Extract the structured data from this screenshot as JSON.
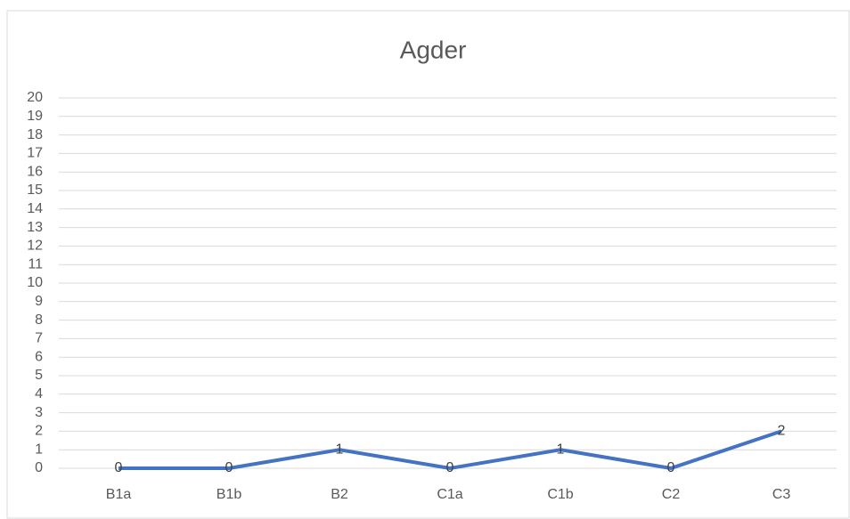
{
  "chart_data": {
    "type": "line",
    "title": "Agder",
    "categories": [
      "B1a",
      "B1b",
      "B2",
      "C1a",
      "C1b",
      "C2",
      "C3"
    ],
    "series": [
      {
        "name": "Agder",
        "color": "#4472c4",
        "values": [
          0,
          0,
          1,
          0,
          1,
          0,
          2
        ]
      }
    ],
    "ylim": [
      0,
      20
    ],
    "yticks": [
      0,
      1,
      2,
      3,
      4,
      5,
      6,
      7,
      8,
      9,
      10,
      11,
      12,
      13,
      14,
      15,
      16,
      17,
      18,
      19,
      20
    ],
    "grid": true,
    "data_labels": true
  }
}
